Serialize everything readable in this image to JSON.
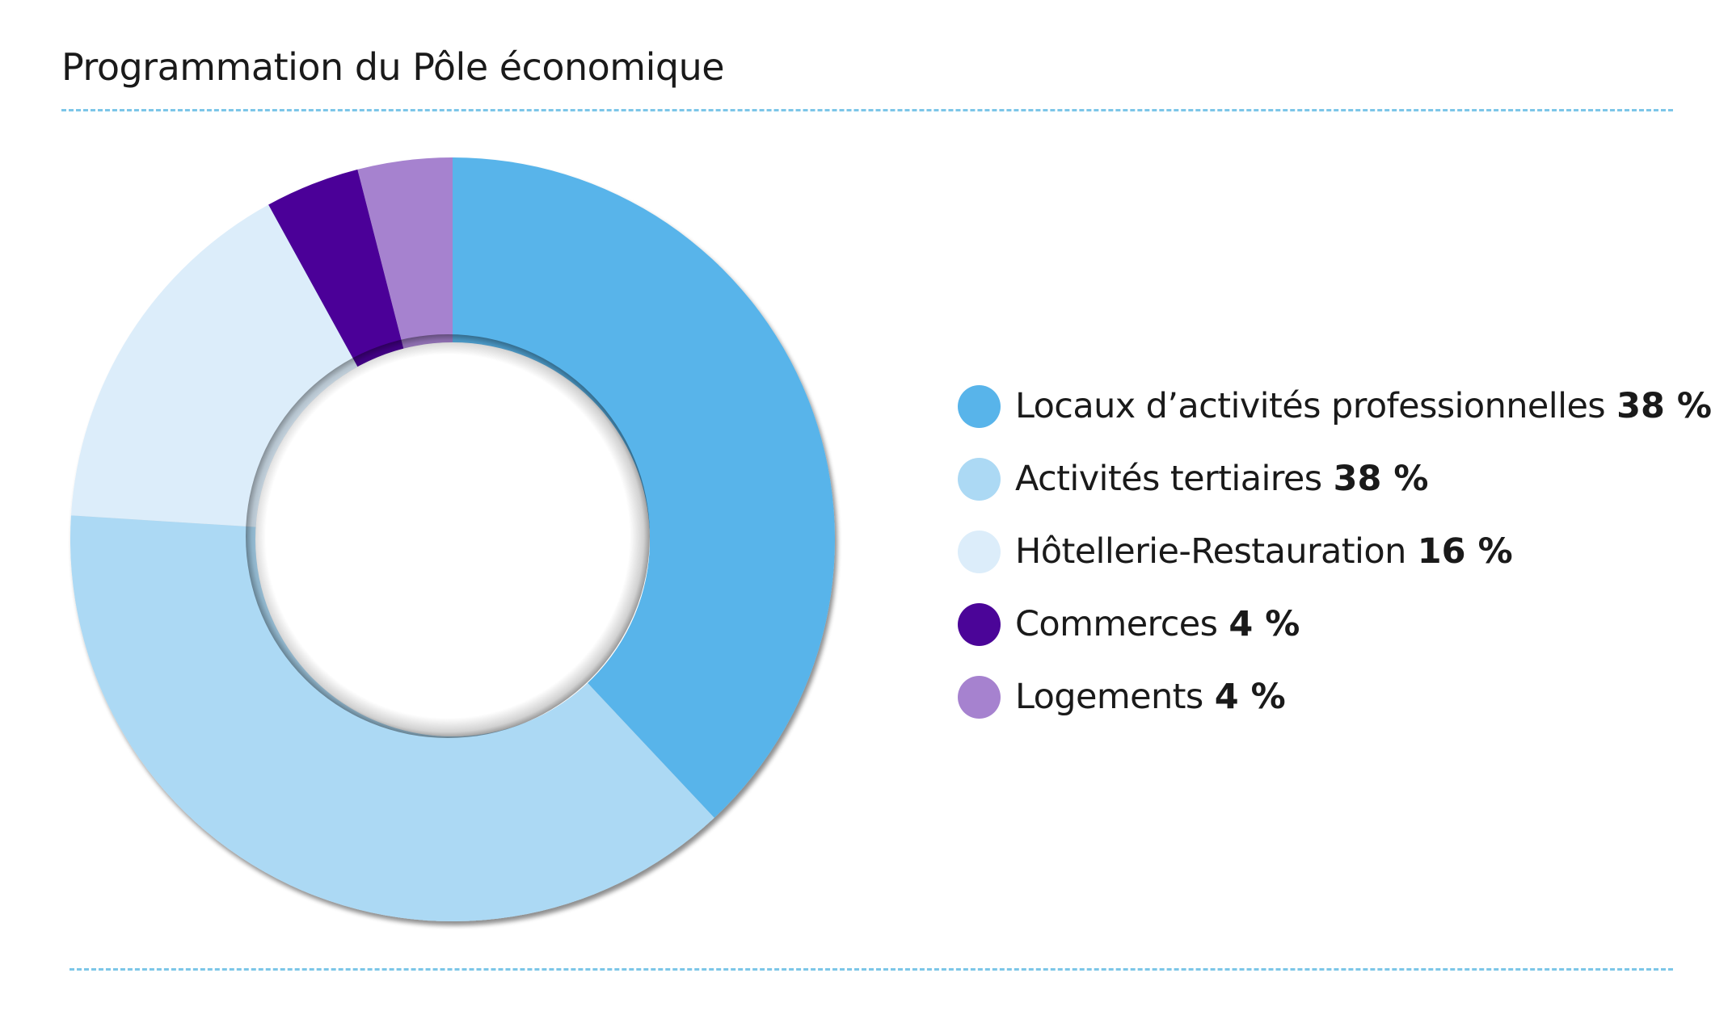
{
  "chart_data": {
    "type": "pie",
    "variant": "donut",
    "title": "Programmation du Pôle économique",
    "slices": [
      {
        "label": "Locaux d’activités professionnelles",
        "value": 38,
        "value_label": "38 %",
        "color": "#58b4ea"
      },
      {
        "label": "Activités tertiaires",
        "value": 38,
        "value_label": "38 %",
        "color": "#acd9f4"
      },
      {
        "label": "Hôtellerie-Restauration",
        "value": 16,
        "value_label": "16 %",
        "color": "#dcedfa"
      },
      {
        "label": "Commerces",
        "value": 4,
        "value_label": "4 %",
        "color": "#4b0598"
      },
      {
        "label": "Logements",
        "value": 4,
        "value_label": "4 %",
        "color": "#a682cf"
      }
    ],
    "legend_position": "right"
  }
}
